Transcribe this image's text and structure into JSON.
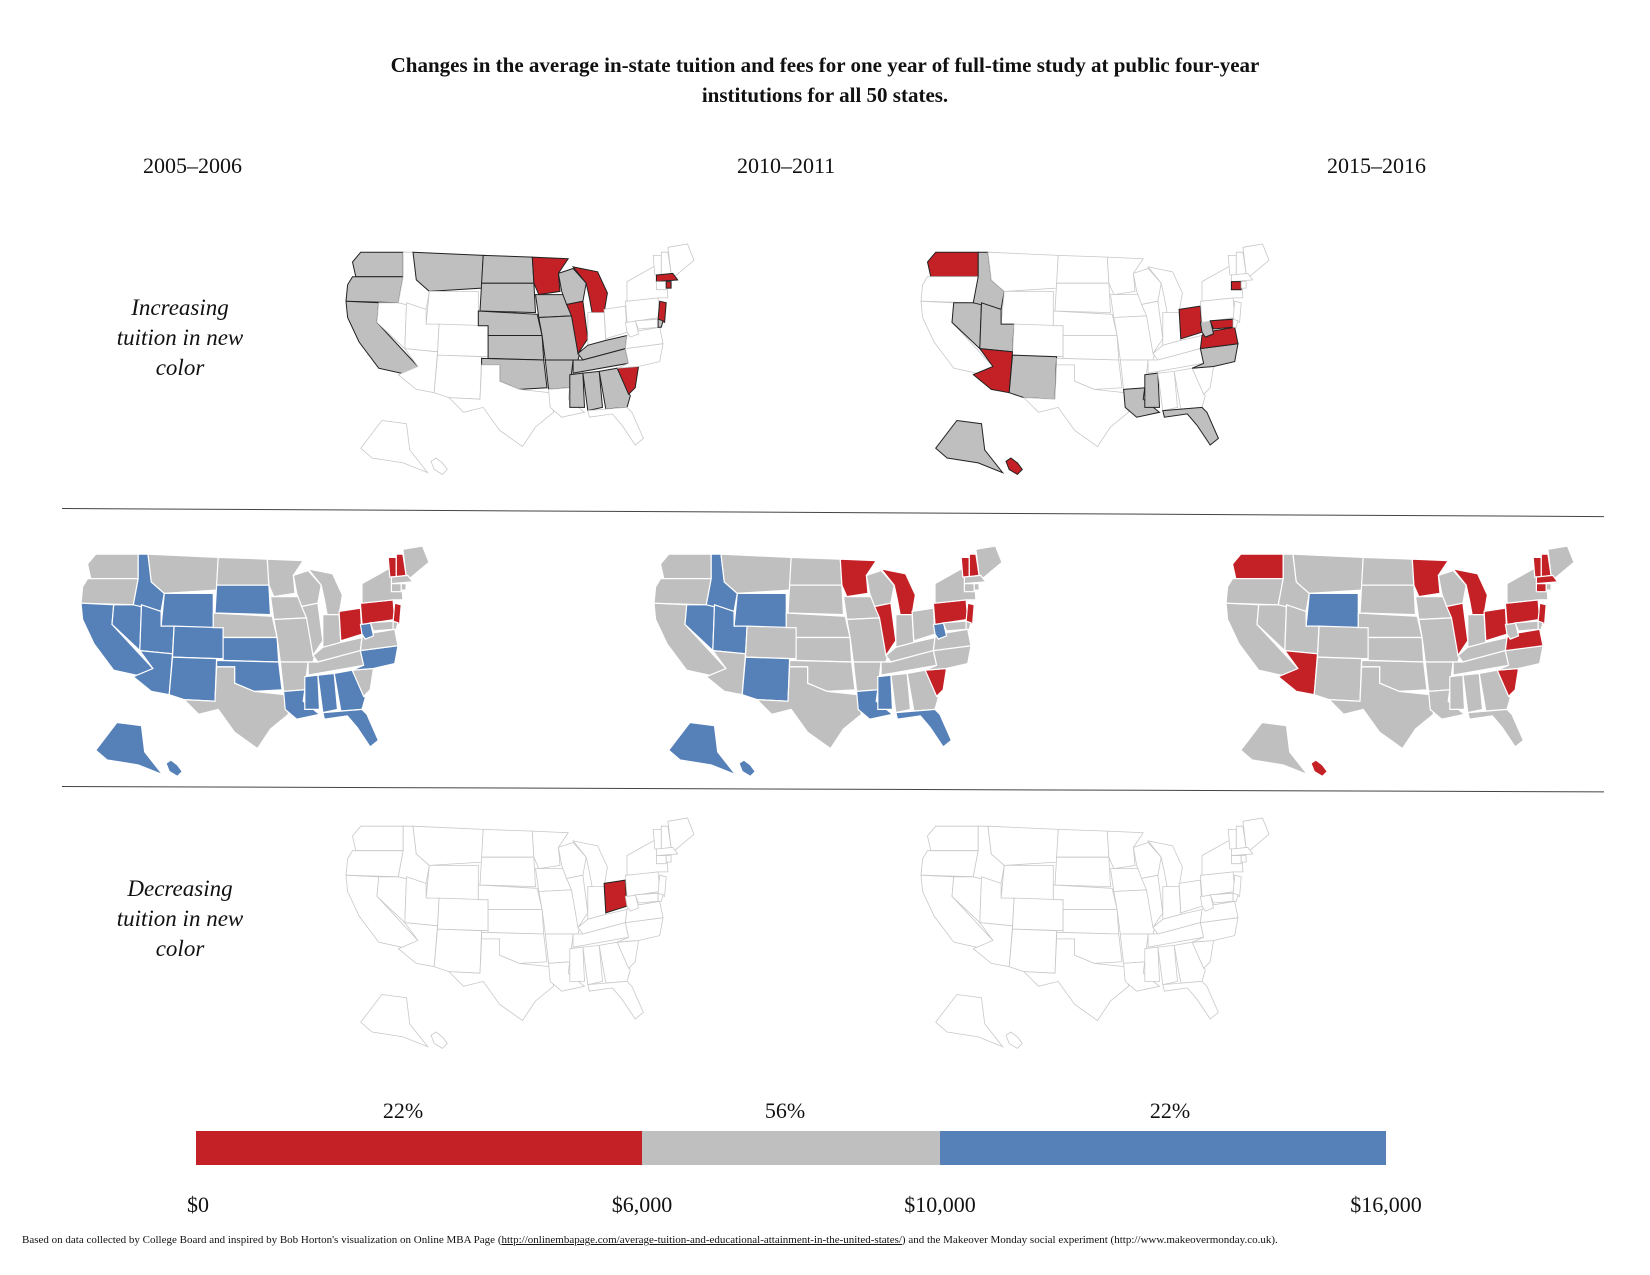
{
  "title_line1": "Changes in the average in-state tuition and fees for one year of full-time study at public four-year",
  "title_line2": "institutions for all 50 states.",
  "columns": [
    "2005–2006",
    "2010–2011",
    "2015–2016"
  ],
  "row_labels": {
    "increasing": [
      "Increasing",
      "tuition in new",
      "color"
    ],
    "decreasing": [
      "Decreasing",
      "tuition in new",
      "color"
    ]
  },
  "colors": {
    "red": "#c42127",
    "gray": "#bfbfbf",
    "blue": "#5580b8",
    "empty": "#ffffff"
  },
  "legend": {
    "segments": [
      {
        "label": "22%",
        "color": "#c42127",
        "from": 0,
        "to": 6000
      },
      {
        "label": "56%",
        "color": "#bfbfbf",
        "from": 6000,
        "to": 10000
      },
      {
        "label": "22%",
        "color": "#5580b8",
        "from": 10000,
        "to": 16000
      }
    ],
    "ticks": [
      "$0",
      "$6,000",
      "$10,000",
      "$16,000"
    ]
  },
  "footnote": {
    "prefix": "Based on data collected by College Board and inspired by  Bob Horton's visualization on Online MBA Page (",
    "link": "http://onlinembapage.com/average-tuition-and-educational-attainment-in-the-united-states/",
    "suffix": ") and the Makeover Monday social experiment (http://www.makeovermonday.co.uk)."
  },
  "maps": {
    "increasing_2005_2010": {
      "red": [
        "MN",
        "MI",
        "IL",
        "SC",
        "MA",
        "RI",
        "NJ"
      ],
      "gray": [
        "MT",
        "ND",
        "SD",
        "NE",
        "KS",
        "OK",
        "WA",
        "OR",
        "CA",
        "AR",
        "MO",
        "KY",
        "TN",
        "MS",
        "AL",
        "GA",
        "IA",
        "WI",
        "DE"
      ]
    },
    "increasing_2010_2015": {
      "red": [
        "WA",
        "AZ",
        "OH",
        "VA",
        "HI",
        "CT",
        "MD"
      ],
      "gray": [
        "ID",
        "NV",
        "UT",
        "NM",
        "LA",
        "MS",
        "FL",
        "NC",
        "WV",
        "AK"
      ]
    },
    "level_2005": {
      "red": [
        "OH",
        "PA",
        "NH",
        "VT",
        "NJ"
      ],
      "blue": [
        "ID",
        "WY",
        "SD",
        "NV",
        "UT",
        "CO",
        "KS",
        "CA",
        "AZ",
        "NM",
        "OK",
        "LA",
        "MS",
        "AL",
        "GA",
        "FL",
        "NC",
        "WV",
        "AK",
        "HI"
      ],
      "gray": [
        "WA",
        "OR",
        "MT",
        "ND",
        "MN",
        "WI",
        "MI",
        "IA",
        "NE",
        "MO",
        "IL",
        "IN",
        "KY",
        "TN",
        "AR",
        "TX",
        "SC",
        "VA",
        "NY",
        "ME",
        "MA",
        "CT",
        "RI",
        "MD",
        "DE"
      ]
    },
    "level_2010": {
      "red": [
        "MN",
        "MI",
        "IL",
        "PA",
        "NJ",
        "NH",
        "VT",
        "SC"
      ],
      "blue": [
        "ID",
        "WY",
        "NV",
        "UT",
        "NM",
        "LA",
        "MS",
        "FL",
        "WV",
        "AK",
        "HI"
      ],
      "gray": [
        "WA",
        "OR",
        "MT",
        "ND",
        "SD",
        "WI",
        "IA",
        "NE",
        "KS",
        "CO",
        "CA",
        "AZ",
        "OK",
        "TX",
        "AR",
        "MO",
        "IN",
        "OH",
        "KY",
        "TN",
        "AL",
        "GA",
        "NC",
        "VA",
        "NY",
        "ME",
        "MA",
        "CT",
        "RI",
        "MD",
        "DE"
      ]
    },
    "level_2015": {
      "red": [
        "WA",
        "MN",
        "MI",
        "IL",
        "OH",
        "PA",
        "NJ",
        "NH",
        "VT",
        "MA",
        "CT",
        "AZ",
        "SC",
        "VA",
        "HI"
      ],
      "blue": [
        "WY"
      ],
      "gray": [
        "OR",
        "CA",
        "NV",
        "ID",
        "MT",
        "UT",
        "CO",
        "NM",
        "ND",
        "SD",
        "NE",
        "KS",
        "OK",
        "TX",
        "IA",
        "MO",
        "AR",
        "LA",
        "WI",
        "IN",
        "KY",
        "TN",
        "MS",
        "AL",
        "GA",
        "FL",
        "NC",
        "WV",
        "NY",
        "ME",
        "RI",
        "MD",
        "DE",
        "AK"
      ]
    },
    "decreasing_2005_2010": {
      "red": [
        "OH"
      ]
    },
    "decreasing_2010_2015": {
      "red": []
    }
  }
}
